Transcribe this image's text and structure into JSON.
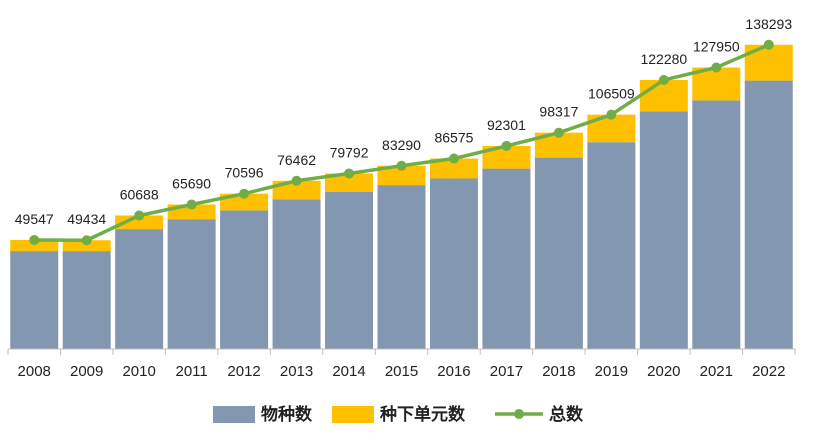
{
  "chart_data": {
    "type": "bar",
    "stacked": true,
    "categories": [
      "2008",
      "2009",
      "2010",
      "2011",
      "2012",
      "2013",
      "2014",
      "2015",
      "2016",
      "2017",
      "2018",
      "2019",
      "2020",
      "2021",
      "2022"
    ],
    "ylim": [
      0,
      145000
    ],
    "grid": false,
    "legend_position": "bottom",
    "series": [
      {
        "name": "物种数",
        "kind": "bar",
        "color": "#8497b0",
        "values": [
          44500,
          44500,
          54500,
          59000,
          63000,
          68000,
          71500,
          74500,
          77500,
          82000,
          87000,
          94000,
          108000,
          113000,
          122000
        ]
      },
      {
        "name": "种下单元数",
        "kind": "bar",
        "color": "#ffc000",
        "values": [
          5047,
          4934,
          6188,
          6690,
          7596,
          8462,
          8292,
          8790,
          9075,
          10301,
          11317,
          12509,
          14280,
          14950,
          16293
        ]
      },
      {
        "name": "总数",
        "kind": "line",
        "color": "#70ad47",
        "values": [
          49547,
          49434,
          60688,
          65690,
          70596,
          76462,
          79792,
          83290,
          86575,
          92301,
          98317,
          106509,
          122280,
          127950,
          138293
        ]
      }
    ],
    "data_labels": [
      "49547",
      "49434",
      "60688",
      "65690",
      "70596",
      "76462",
      "79792",
      "83290",
      "86575",
      "92301",
      "98317",
      "106509",
      "122280",
      "127950",
      "138293"
    ]
  }
}
